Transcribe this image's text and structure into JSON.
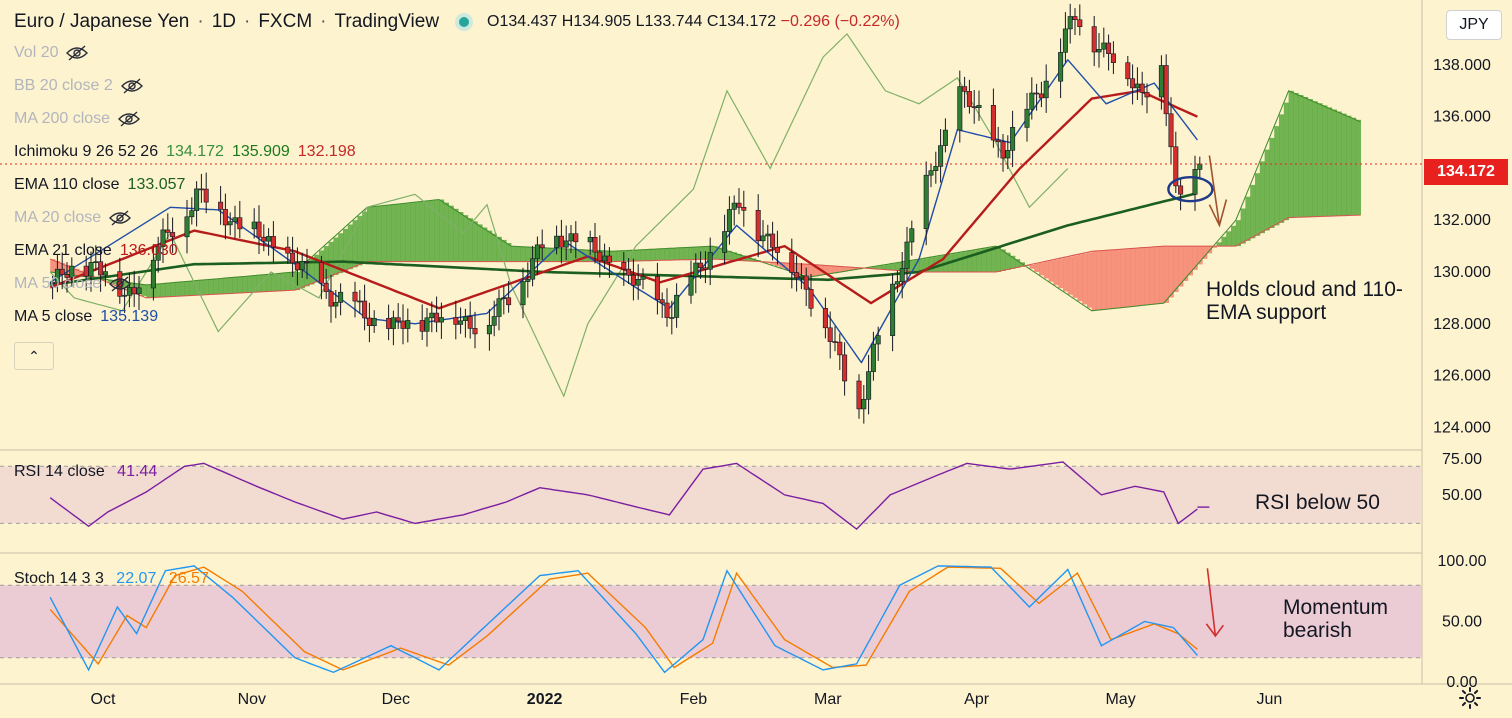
{
  "header": {
    "symbol": "Euro / Japanese Yen",
    "interval": "1D",
    "exchange": "FXCM",
    "platform": "TradingView",
    "open": "O134.437",
    "high": "H134.905",
    "low": "L133.744",
    "close": "C134.172",
    "change": "−0.296 (−0.22%)"
  },
  "indicators": [
    {
      "label": "Vol 20",
      "values": [],
      "hidden": true
    },
    {
      "label": "BB 20 close 2",
      "values": [],
      "hidden": true
    },
    {
      "label": "MA 200 close",
      "values": [],
      "hidden": true
    },
    {
      "label": "Ichimoku 9 26 52 26",
      "values": [
        {
          "text": "134.172",
          "color": "#388e3c"
        },
        {
          "text": "135.909",
          "color": "#1b7a1b"
        },
        {
          "text": "132.198",
          "color": "#c62828"
        }
      ],
      "hidden": false
    },
    {
      "label": "EMA 110 close",
      "values": [
        {
          "text": "133.057",
          "color": "#1b5e20"
        }
      ],
      "hidden": false
    },
    {
      "label": "MA 20 close",
      "values": [],
      "hidden": true
    },
    {
      "label": "EMA 21 close",
      "values": [
        {
          "text": "136.030",
          "color": "#b71c1c"
        }
      ],
      "hidden": false
    },
    {
      "label": "MA 50 close",
      "values": [],
      "hidden": true
    },
    {
      "label": "MA 5 close",
      "values": [
        {
          "text": "135.139",
          "color": "#1e4ea8"
        }
      ],
      "hidden": false
    }
  ],
  "rsi": {
    "label": "RSI 14 close",
    "value": "41.44",
    "value_color": "#7b1fa2"
  },
  "stoch": {
    "label": "Stoch 14 3 3",
    "k": "22.07",
    "d": "26.57",
    "k_color": "#2196f3",
    "d_color": "#f57c00"
  },
  "annotations": {
    "main": "Holds cloud and 110-EMA support",
    "rsi": "RSI below 50",
    "stoch": "Momentum bearish"
  },
  "price_tag": "134.172",
  "currency_button": "JPY",
  "colors": {
    "background": "#fdf3cf",
    "candle_up": "#2e7d32",
    "candle_down": "#d32f2f",
    "ema110": "#1b5e20",
    "ema21": "#b71c1c",
    "ma5": "#1e4ea8",
    "cloud_bull": "#5aa83c",
    "cloud_bear": "#f4816f",
    "rsi_line": "#7b1fa2",
    "stoch_k": "#2196f3",
    "stoch_d": "#f57c00"
  },
  "chart_data": [
    {
      "type": "candlestick",
      "title": "Euro / Japanese Yen · 1D · FXCM",
      "x_tick_labels": [
        "Oct",
        "Nov",
        "Dec",
        "2022",
        "Feb",
        "Mar",
        "Apr",
        "May",
        "Jun"
      ],
      "x_tick_dates": [
        "2021-10-01",
        "2021-11-01",
        "2021-12-01",
        "2022-01-01",
        "2022-02-01",
        "2022-03-01",
        "2022-04-01",
        "2022-05-01",
        "2022-06-01"
      ],
      "y_tick_labels": [
        "124.000",
        "126.000",
        "128.000",
        "130.000",
        "132.000",
        "134.000",
        "136.000",
        "138.000"
      ],
      "ylim": [
        123.2,
        140.2
      ],
      "y_axis_side": "right",
      "last_close": 134.172,
      "price_anchors": {
        "dates": [
          "2021-09-20",
          "2021-09-29",
          "2021-10-05",
          "2021-10-20",
          "2021-11-05",
          "2021-11-18",
          "2021-11-30",
          "2021-12-08",
          "2021-12-20",
          "2021-12-31",
          "2022-01-05",
          "2022-01-15",
          "2022-01-27",
          "2022-02-10",
          "2022-02-24",
          "2022-03-07",
          "2022-03-15",
          "2022-03-28",
          "2022-04-06",
          "2022-04-14",
          "2022-04-21",
          "2022-05-05",
          "2022-05-09",
          "2022-05-12",
          "2022-05-17"
        ],
        "values": [
          129.6,
          130.4,
          129.0,
          133.0,
          131.0,
          129.0,
          127.8,
          128.3,
          128.0,
          130.9,
          131.5,
          130.2,
          128.5,
          132.6,
          129.5,
          124.8,
          130.0,
          137.0,
          134.7,
          137.2,
          139.8,
          137.0,
          137.8,
          133.0,
          134.17
        ]
      },
      "series": [
        {
          "name": "EMA 110 close",
          "last": 133.057,
          "anchors": {
            "dates": [
              "2021-09-20",
              "2021-10-20",
              "2021-11-20",
              "2022-01-01",
              "2022-03-01",
              "2022-03-20",
              "2022-04-20",
              "2022-05-17"
            ],
            "values": [
              129.5,
              130.3,
              130.4,
              130.0,
              129.7,
              130.0,
              131.8,
              133.05
            ]
          }
        },
        {
          "name": "EMA 21 close",
          "last": 136.03,
          "anchors": {
            "dates": [
              "2021-09-20",
              "2021-10-20",
              "2021-11-10",
              "2021-12-10",
              "2022-01-10",
              "2022-01-25",
              "2022-02-20",
              "2022-03-10",
              "2022-03-25",
              "2022-04-10",
              "2022-04-25",
              "2022-05-05",
              "2022-05-17"
            ],
            "values": [
              129.4,
              131.6,
              130.8,
              128.6,
              130.6,
              129.6,
              131.0,
              128.8,
              130.5,
              134.0,
              136.7,
              137.0,
              136.0
            ]
          }
        },
        {
          "name": "MA 5 close",
          "last": 135.139,
          "anchors": {
            "dates": [
              "2021-09-20",
              "2021-10-15",
              "2021-10-25",
              "2021-11-10",
              "2021-11-25",
              "2021-12-05",
              "2021-12-20",
              "2022-01-05",
              "2022-01-20",
              "2022-01-27",
              "2022-02-10",
              "2022-02-25",
              "2022-03-08",
              "2022-03-20",
              "2022-03-28",
              "2022-04-08",
              "2022-04-20",
              "2022-04-28",
              "2022-05-08",
              "2022-05-17"
            ],
            "values": [
              129.6,
              132.5,
              132.4,
              130.3,
              128.2,
              128.0,
              128.4,
              131.2,
              129.4,
              128.6,
              131.8,
              129.4,
              126.5,
              130.5,
              135.5,
              135.0,
              138.2,
              136.5,
              137.3,
              135.1
            ]
          }
        }
      ],
      "ichimoku": {
        "settings": "9 26 52 26",
        "values": [
          134.172,
          135.909,
          132.198
        ],
        "span_a_anchors": {
          "dates": [
            "2021-09-20",
            "2021-10-10",
            "2021-11-10",
            "2021-11-25",
            "2021-12-10",
            "2021-12-25",
            "2022-01-15",
            "2022-02-05",
            "2022-02-25",
            "2022-03-20",
            "2022-04-05",
            "2022-04-25",
            "2022-05-10",
            "2022-05-25",
            "2022-06-05",
            "2022-06-20"
          ],
          "values": [
            130.0,
            129.5,
            130.0,
            132.5,
            132.8,
            131.0,
            130.8,
            131.0,
            129.8,
            130.5,
            131.0,
            128.5,
            128.8,
            132.0,
            137.0,
            135.8
          ]
        },
        "span_b_anchors": {
          "dates": [
            "2021-09-20",
            "2021-10-10",
            "2021-11-10",
            "2021-11-25",
            "2021-12-10",
            "2021-12-25",
            "2022-01-15",
            "2022-02-05",
            "2022-02-25",
            "2022-03-20",
            "2022-04-05",
            "2022-04-25",
            "2022-05-10",
            "2022-05-25",
            "2022-06-05",
            "2022-06-20"
          ],
          "values": [
            130.5,
            129.0,
            129.3,
            130.4,
            130.4,
            130.4,
            130.4,
            130.5,
            130.3,
            130.0,
            130.0,
            130.8,
            131.0,
            131.0,
            132.1,
            132.2
          ]
        },
        "lagging_anchors": {
          "dates": [
            "2021-09-20",
            "2021-09-25",
            "2021-10-05",
            "2021-10-15",
            "2021-10-25",
            "2021-11-05",
            "2021-11-15",
            "2021-11-25",
            "2021-12-05",
            "2021-12-15",
            "2021-12-20",
            "2021-12-25",
            "2022-01-05",
            "2022-01-10",
            "2022-01-20",
            "2022-02-01",
            "2022-02-08",
            "2022-02-17",
            "2022-02-28",
            "2022-03-05",
            "2022-03-13",
            "2022-03-20",
            "2022-03-28",
            "2022-04-05",
            "2022-04-12",
            "2022-04-20"
          ],
          "values": [
            130.0,
            129.0,
            128.5,
            131.5,
            127.7,
            130.0,
            129.0,
            132.5,
            133.0,
            131.5,
            132.6,
            129.5,
            125.2,
            128.0,
            131.0,
            133.2,
            137.0,
            134.0,
            138.3,
            139.2,
            137.0,
            136.5,
            137.5,
            135.0,
            132.5,
            134.0
          ]
        }
      }
    },
    {
      "type": "line",
      "title": "RSI 14 close",
      "ylim": [
        10,
        80
      ],
      "y_tick_labels": [
        "50.00",
        "75.00"
      ],
      "bands": [
        30,
        70
      ],
      "last": 41.44,
      "series": [
        {
          "name": "RSI 14 close",
          "anchors": {
            "dates": [
              "2021-09-20",
              "2021-09-28",
              "2021-10-02",
              "2021-10-10",
              "2021-10-18",
              "2021-10-22",
              "2021-11-02",
              "2021-11-10",
              "2021-11-20",
              "2021-11-27",
              "2021-12-05",
              "2021-12-15",
              "2021-12-24",
              "2021-12-31",
              "2022-01-10",
              "2022-01-22",
              "2022-01-27",
              "2022-02-03",
              "2022-02-10",
              "2022-02-20",
              "2022-02-28",
              "2022-03-07",
              "2022-03-14",
              "2022-03-24",
              "2022-03-30",
              "2022-04-08",
              "2022-04-19",
              "2022-04-27",
              "2022-05-04",
              "2022-05-10",
              "2022-05-13",
              "2022-05-17"
            ],
            "values": [
              48,
              28,
              38,
              52,
              70,
              72,
              56,
              45,
              33,
              38,
              30,
              36,
              45,
              55,
              50,
              40,
              36,
              68,
              72,
              50,
              44,
              26,
              50,
              64,
              72,
              68,
              73,
              50,
              56,
              52,
              30,
              40
            ]
          }
        }
      ]
    },
    {
      "type": "line",
      "title": "Stoch 14 3 3",
      "ylim": [
        0,
        105
      ],
      "y_tick_labels": [
        "0.00",
        "50.00",
        "100.00"
      ],
      "bands": [
        20,
        80
      ],
      "series": [
        {
          "name": "%K",
          "last": 22.07,
          "anchors": {
            "dates": [
              "2021-09-20",
              "2021-09-28",
              "2021-10-04",
              "2021-10-08",
              "2021-10-14",
              "2021-10-20",
              "2021-10-28",
              "2021-11-10",
              "2021-11-18",
              "2021-11-30",
              "2021-12-10",
              "2021-12-18",
              "2021-12-31",
              "2022-01-08",
              "2022-01-20",
              "2022-01-26",
              "2022-02-03",
              "2022-02-08",
              "2022-02-18",
              "2022-02-28",
              "2022-03-07",
              "2022-03-16",
              "2022-03-24",
              "2022-04-04",
              "2022-04-12",
              "2022-04-20",
              "2022-04-27",
              "2022-05-06",
              "2022-05-12",
              "2022-05-17"
            ],
            "values": [
              70,
              10,
              62,
              40,
              92,
              96,
              70,
              20,
              8,
              30,
              10,
              40,
              88,
              92,
              40,
              8,
              35,
              92,
              30,
              10,
              15,
              80,
              96,
              95,
              62,
              93,
              30,
              50,
              45,
              22
            ]
          }
        },
        {
          "name": "%D",
          "last": 26.57,
          "anchors": {
            "dates": [
              "2021-09-20",
              "2021-09-30",
              "2021-10-06",
              "2021-10-10",
              "2021-10-16",
              "2021-10-22",
              "2021-10-30",
              "2021-11-12",
              "2021-11-20",
              "2021-12-02",
              "2021-12-12",
              "2021-12-20",
              "2022-01-02",
              "2022-01-10",
              "2022-01-22",
              "2022-01-28",
              "2022-02-05",
              "2022-02-10",
              "2022-02-20",
              "2022-03-02",
              "2022-03-09",
              "2022-03-18",
              "2022-03-26",
              "2022-04-06",
              "2022-04-14",
              "2022-04-22",
              "2022-04-29",
              "2022-05-08",
              "2022-05-13",
              "2022-05-17"
            ],
            "values": [
              60,
              15,
              55,
              45,
              88,
              95,
              75,
              25,
              10,
              28,
              14,
              38,
              85,
              90,
              45,
              12,
              32,
              90,
              35,
              12,
              14,
              75,
              95,
              94,
              65,
              90,
              35,
              48,
              40,
              27
            ]
          }
        }
      ]
    }
  ]
}
